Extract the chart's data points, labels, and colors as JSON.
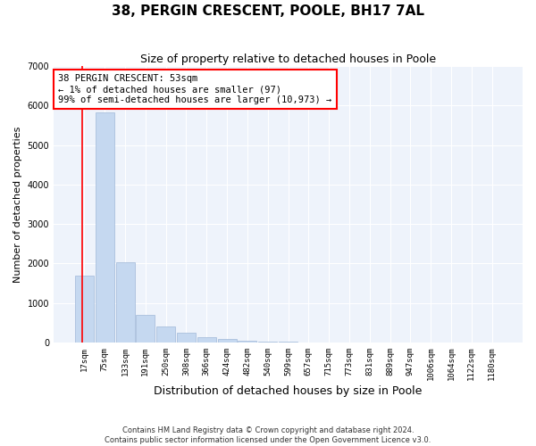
{
  "title": "38, PERGIN CRESCENT, POOLE, BH17 7AL",
  "subtitle": "Size of property relative to detached houses in Poole",
  "xlabel": "Distribution of detached houses by size in Poole",
  "ylabel": "Number of detached properties",
  "footnote1": "Contains HM Land Registry data © Crown copyright and database right 2024.",
  "footnote2": "Contains public sector information licensed under the Open Government Licence v3.0.",
  "bar_labels": [
    "17sqm",
    "75sqm",
    "133sqm",
    "191sqm",
    "250sqm",
    "308sqm",
    "366sqm",
    "424sqm",
    "482sqm",
    "540sqm",
    "599sqm",
    "657sqm",
    "715sqm",
    "773sqm",
    "831sqm",
    "889sqm",
    "947sqm",
    "1006sqm",
    "1064sqm",
    "1122sqm",
    "1180sqm"
  ],
  "bar_values": [
    1700,
    5820,
    2030,
    710,
    415,
    255,
    145,
    95,
    50,
    25,
    12,
    5,
    3,
    2,
    1,
    1,
    0,
    0,
    0,
    0,
    0
  ],
  "bar_color": "#c5d8f0",
  "bar_edge_color": "#a0b8d8",
  "annotation_text": "38 PERGIN CRESCENT: 53sqm\n← 1% of detached houses are smaller (97)\n99% of semi-detached houses are larger (10,973) →",
  "annotation_box_color": "red",
  "vline_color": "red",
  "vline_x_bar_index": 0,
  "ylim": [
    0,
    7000
  ],
  "yticks": [
    0,
    1000,
    2000,
    3000,
    4000,
    5000,
    6000,
    7000
  ],
  "bg_color": "#eef3fb",
  "grid_color": "white",
  "title_fontsize": 11,
  "subtitle_fontsize": 9,
  "xlabel_fontsize": 9,
  "ylabel_fontsize": 8,
  "tick_fontsize": 6.5,
  "annotation_fontsize": 7.5
}
